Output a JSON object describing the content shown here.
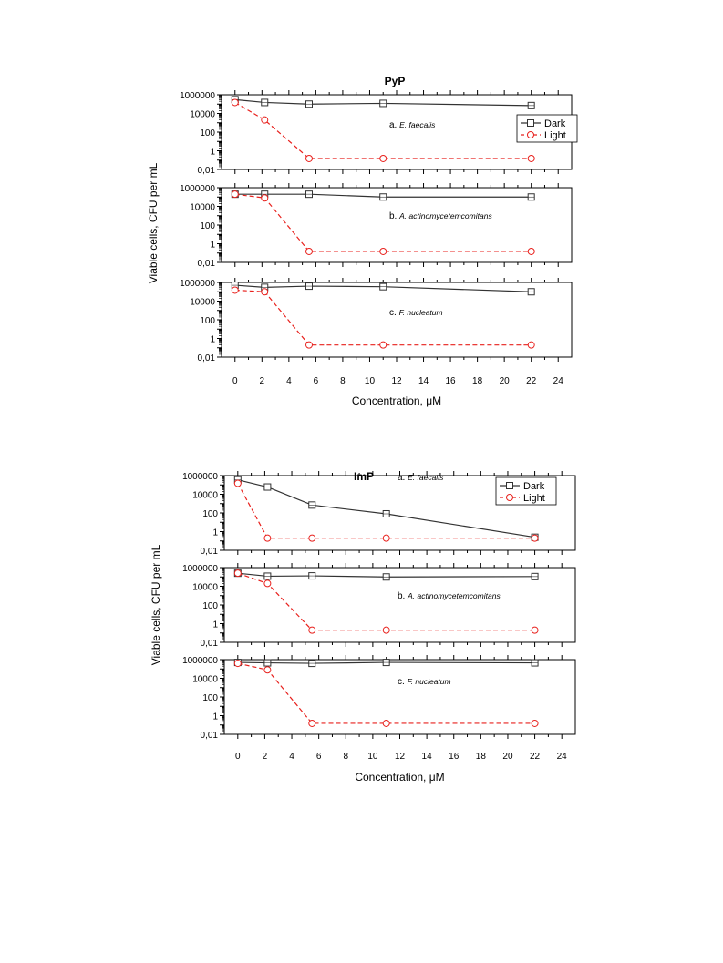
{
  "colors": {
    "dark": "#333333",
    "light": "#e8211d",
    "axis": "#000000"
  },
  "legend": {
    "dark_label": "Dark",
    "light_label": "Light",
    "position": "top-right"
  },
  "chart_data": [
    {
      "type": "line",
      "title": "PyP",
      "xlabel": "Concentration, μM",
      "ylabel": "Viable cells, CFU per mL",
      "xlim": [
        -1,
        25
      ],
      "xticks": [
        "0",
        "2",
        "4",
        "6",
        "8",
        "10",
        "12",
        "14",
        "16",
        "18",
        "20",
        "22",
        "24"
      ],
      "ylim": [
        0.01,
        1000000
      ],
      "yscale": "log",
      "yticks": [
        "0,01",
        "1",
        "100",
        "10000",
        "1000000"
      ],
      "grid": false,
      "panels": [
        {
          "label_prefix": "a.",
          "label_organism": "E. faecalis",
          "has_legend": true,
          "series": [
            {
              "name": "Dark",
              "x": [
                0,
                2.2,
                5.5,
                11,
                22
              ],
              "y": [
                300000,
                150000,
                100000,
                120000,
                70000
              ]
            },
            {
              "name": "Light",
              "x": [
                0,
                2.2,
                5.5,
                11,
                22
              ],
              "y": [
                150000,
                2000,
                0.15,
                0.15,
                0.15
              ]
            }
          ]
        },
        {
          "label_prefix": "b.",
          "label_organism": "A. actinomycetemcomitans",
          "has_legend": false,
          "series": [
            {
              "name": "Dark",
              "x": [
                0,
                2.2,
                5.5,
                11,
                22
              ],
              "y": [
                200000,
                200000,
                200000,
                100000,
                100000
              ]
            },
            {
              "name": "Light",
              "x": [
                0,
                2.2,
                5.5,
                11,
                22
              ],
              "y": [
                200000,
                80000,
                0.15,
                0.15,
                0.15
              ]
            }
          ]
        },
        {
          "label_prefix": "c.",
          "label_organism": "F. nucleatum",
          "has_legend": false,
          "series": [
            {
              "name": "Dark",
              "x": [
                0,
                2.2,
                5.5,
                11,
                22
              ],
              "y": [
                500000,
                300000,
                400000,
                350000,
                100000
              ]
            },
            {
              "name": "Light",
              "x": [
                0,
                2.2,
                5.5,
                11,
                22
              ],
              "y": [
                150000,
                100000,
                0.2,
                0.2,
                0.2
              ]
            }
          ]
        }
      ]
    },
    {
      "type": "line",
      "title": "ImP",
      "xlabel": "Concentration, μM",
      "ylabel": "Viable cells, CFU per mL",
      "xlim": [
        -1,
        25
      ],
      "xticks": [
        "0",
        "2",
        "4",
        "6",
        "8",
        "10",
        "12",
        "14",
        "16",
        "18",
        "20",
        "22",
        "24"
      ],
      "ylim": [
        0.01,
        1000000
      ],
      "yscale": "log",
      "yticks": [
        "0,01",
        "1",
        "100",
        "10000",
        "1000000"
      ],
      "grid": false,
      "panels": [
        {
          "label_prefix": "a.",
          "label_organism": "E. faecalis",
          "has_legend": true,
          "series": [
            {
              "name": "Dark",
              "x": [
                0,
                2.2,
                5.5,
                11,
                22
              ],
              "y": [
                350000,
                60000,
                700,
                80,
                0.25
              ]
            },
            {
              "name": "Light",
              "x": [
                0,
                2.2,
                5.5,
                11,
                22
              ],
              "y": [
                150000,
                0.2,
                0.2,
                0.2,
                0.2
              ]
            }
          ]
        },
        {
          "label_prefix": "b.",
          "label_organism": "A. actinomycetemcomitans",
          "has_legend": false,
          "series": [
            {
              "name": "Dark",
              "x": [
                0,
                2.2,
                5.5,
                11,
                22
              ],
              "y": [
                250000,
                120000,
                130000,
                100000,
                110000
              ]
            },
            {
              "name": "Light",
              "x": [
                0,
                2.2,
                5.5,
                11,
                22
              ],
              "y": [
                250000,
                20000,
                0.2,
                0.2,
                0.2
              ]
            }
          ]
        },
        {
          "label_prefix": "c.",
          "label_organism": "F. nucleatum",
          "has_legend": false,
          "series": [
            {
              "name": "Dark",
              "x": [
                0,
                2.2,
                5.5,
                11,
                22
              ],
              "y": [
                500000,
                450000,
                400000,
                500000,
                450000
              ]
            },
            {
              "name": "Light",
              "x": [
                0,
                2.2,
                5.5,
                11,
                22
              ],
              "y": [
                400000,
                80000,
                0.15,
                0.15,
                0.15
              ]
            }
          ]
        }
      ]
    }
  ]
}
